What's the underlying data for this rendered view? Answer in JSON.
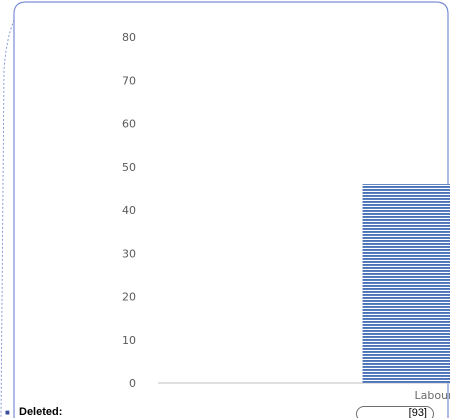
{
  "comment": {
    "label": "Deleted:",
    "reference": "[93]",
    "border_color": "#7a8ed6"
  },
  "chart_data": {
    "type": "bar",
    "title": "",
    "xlabel": "",
    "ylabel": "",
    "ylim": [
      0,
      80
    ],
    "yticks": [
      0,
      10,
      20,
      30,
      40,
      50,
      60,
      70,
      80
    ],
    "categories": [
      "",
      "Labour force"
    ],
    "category_labels_shown": [
      "",
      "Labour forc"
    ],
    "values": [
      0,
      46
    ],
    "bar_color": "#4a72b8",
    "grid": false,
    "legend": "none"
  }
}
